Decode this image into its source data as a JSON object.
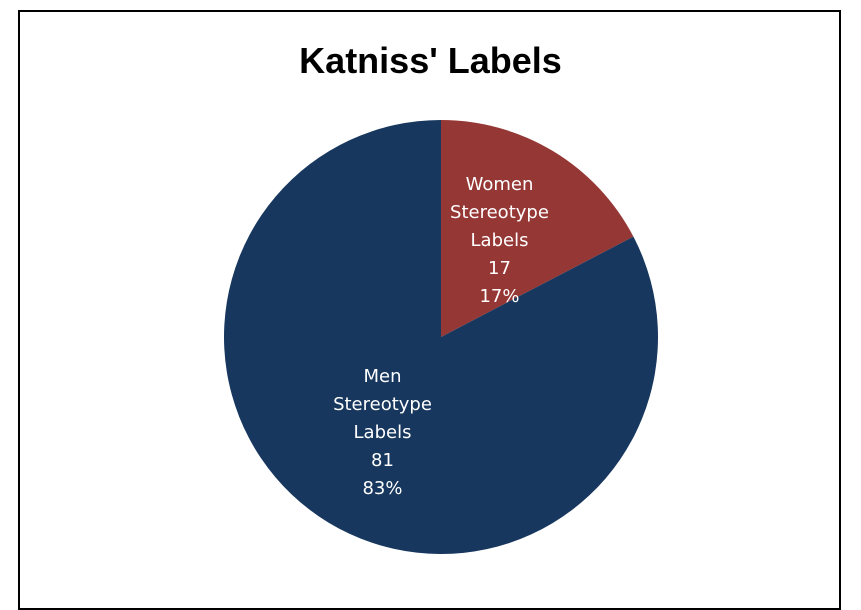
{
  "chart_data": {
    "type": "pie",
    "title": "Katniss' Labels",
    "categories": [
      "Women Stereotype Labels",
      "Men Stereotype Labels"
    ],
    "values": [
      17,
      81
    ],
    "percent_labels": [
      "17%",
      "83%"
    ],
    "colors": [
      "#953735",
      "#17375e"
    ]
  }
}
